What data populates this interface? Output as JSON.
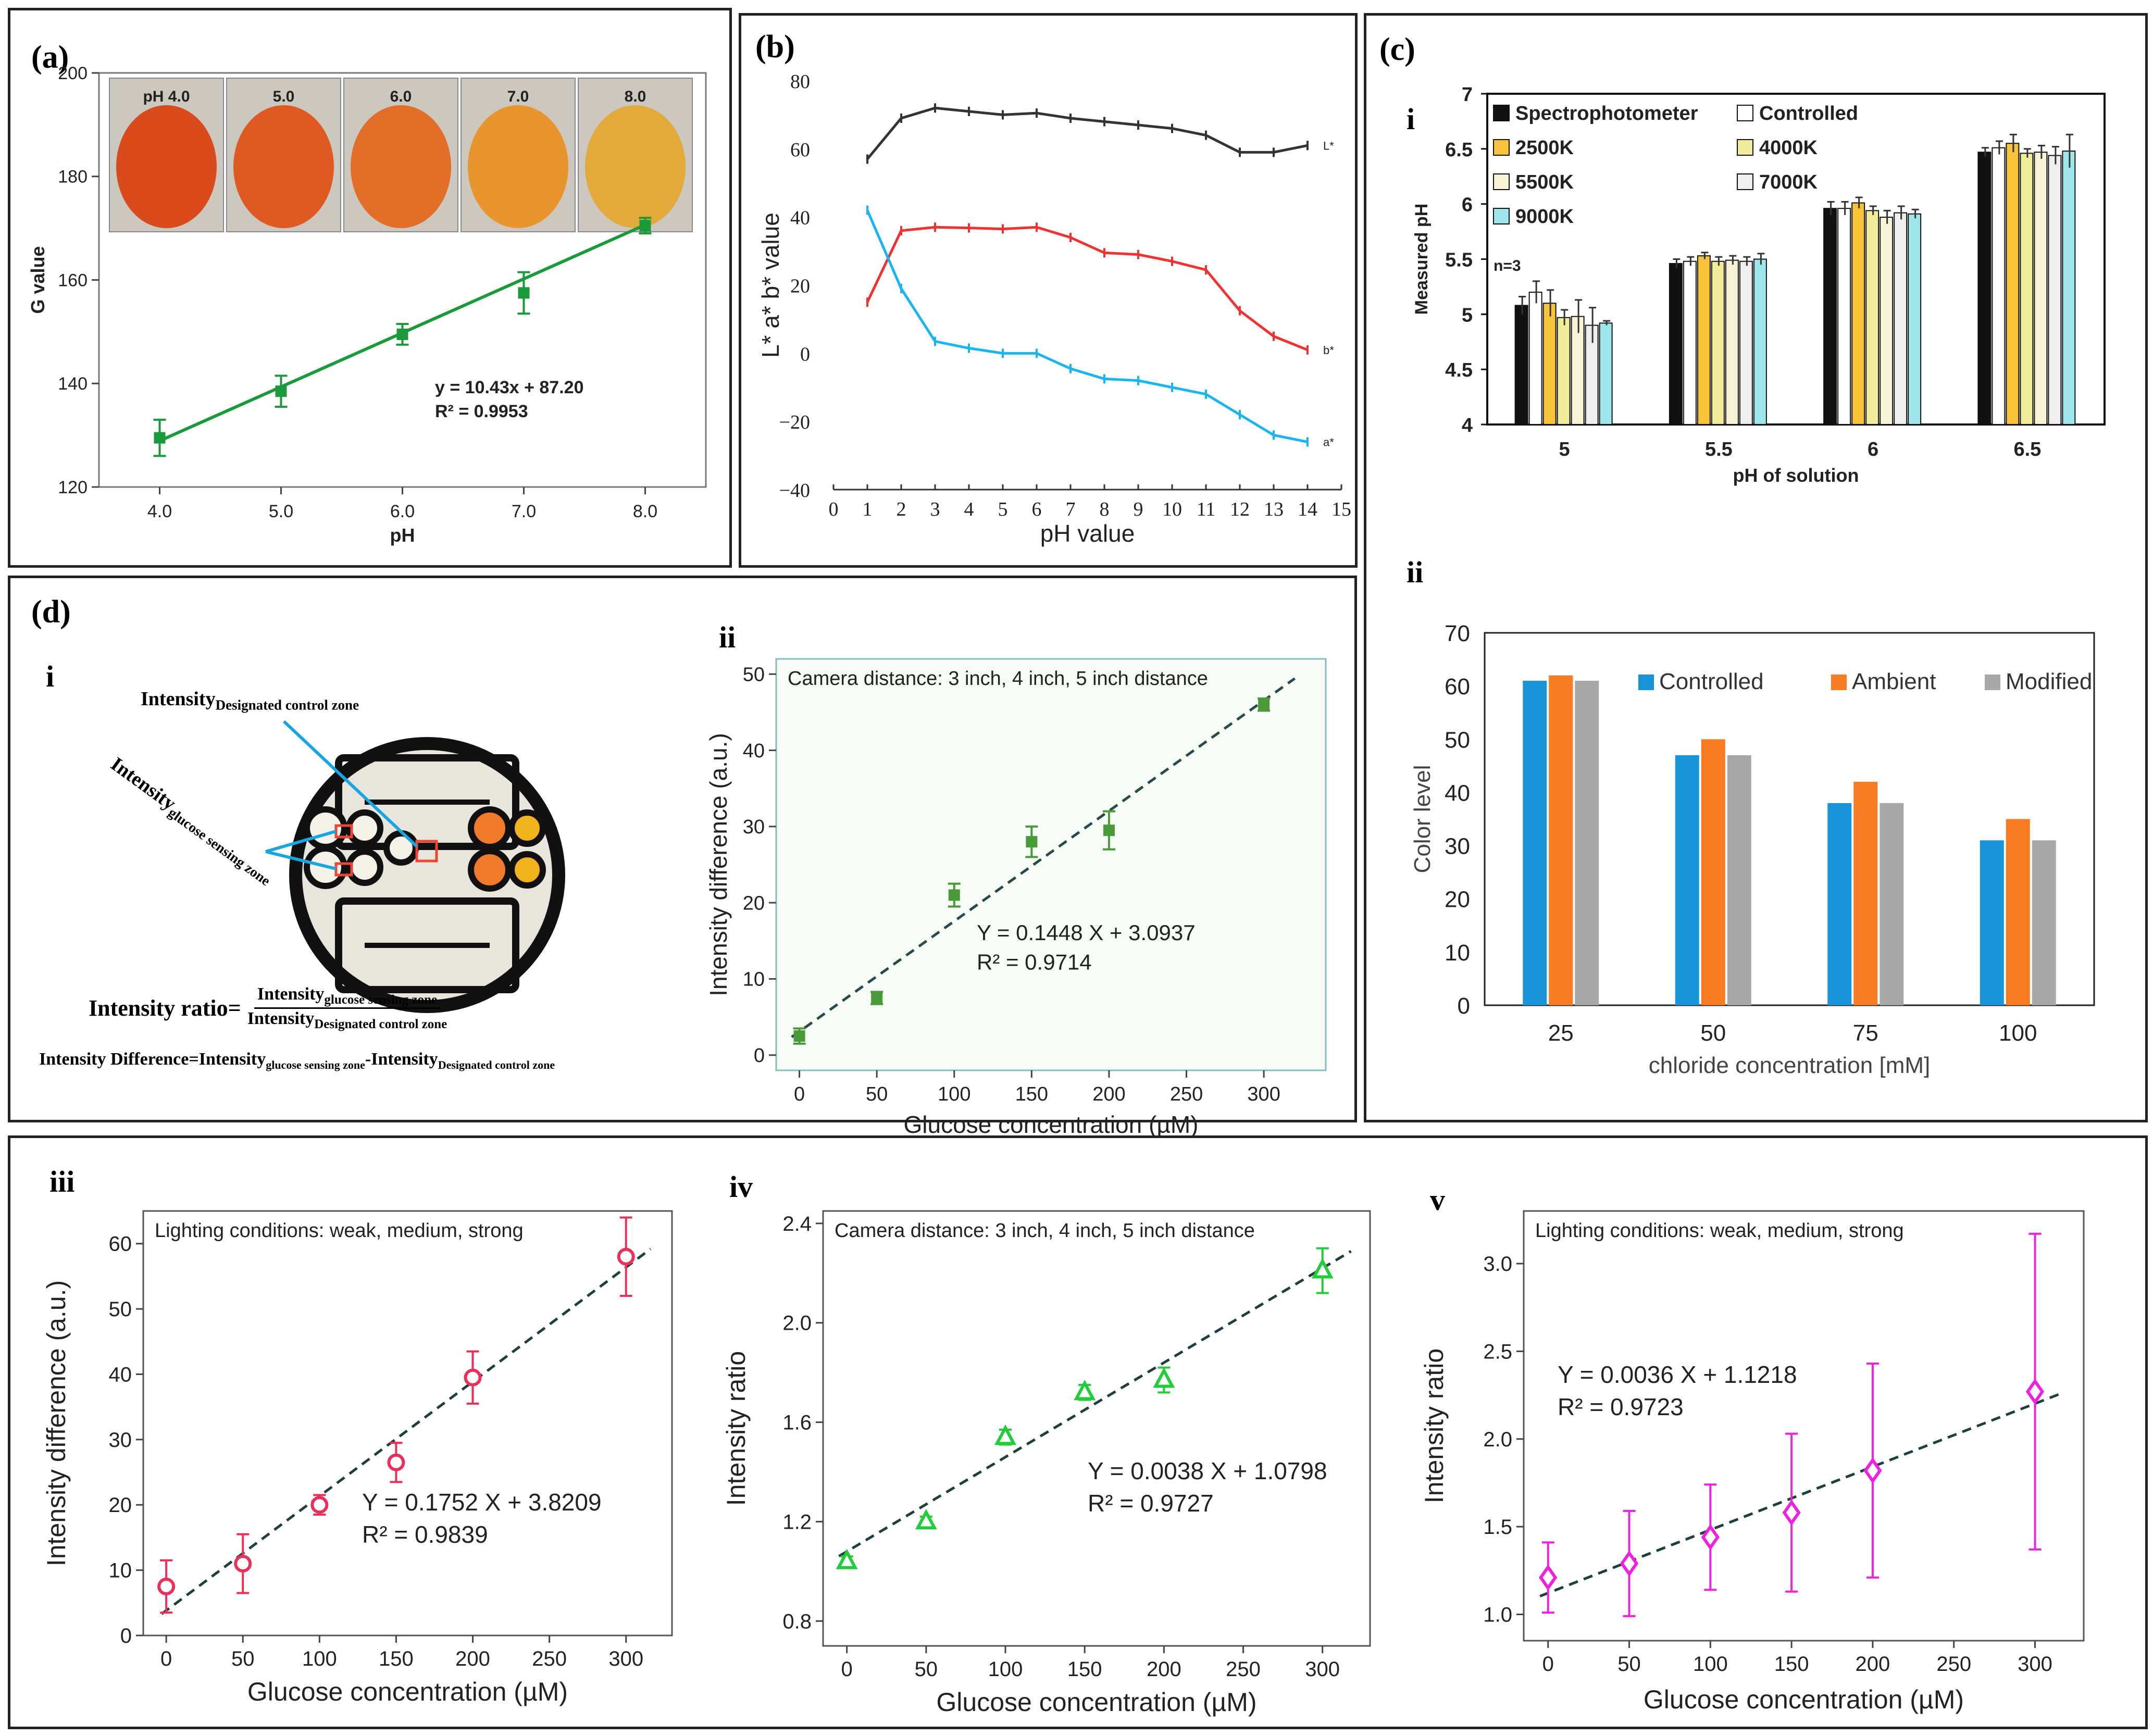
{
  "panels": {
    "a": {
      "label": "(a)"
    },
    "b": {
      "label": "(b)"
    },
    "c": {
      "label": "(c)",
      "sub_i": "i",
      "sub_ii": "ii"
    },
    "d": {
      "label": "(d)",
      "sub_i": "i",
      "sub_ii": "ii",
      "sub_iii": "iii",
      "sub_iv": "iv",
      "sub_v": "v"
    }
  },
  "diagram": {
    "control_zone_label": "Intensity",
    "control_zone_sub": "Designated control zone",
    "sensing_zone_label": "Intensity",
    "sensing_zone_sub": "glucose sensing zone",
    "ratio_label": "Intensity ratio=",
    "ratio_num": "Intensity",
    "ratio_num_sub": "glucose sensing zone",
    "ratio_den": "Intensity",
    "ratio_den_sub": "Designated control zone",
    "diff_label": "Intensity Difference=Intensity",
    "diff_sub1": "glucose sensing zone",
    "diff_mid": "-Intensity",
    "diff_sub2": "Designated control zone"
  },
  "photo_strip": {
    "labels": [
      "pH 4.0",
      "5.0",
      "6.0",
      "7.0",
      "8.0"
    ],
    "colors": [
      "#d94a1c",
      "#de5a22",
      "#e26e28",
      "#e8952e",
      "#e2aa3a"
    ]
  },
  "chart_data": [
    {
      "id": "a",
      "type": "scatter",
      "title": "",
      "xlabel": "pH",
      "ylabel": "G value",
      "x": [
        4,
        5,
        6,
        7,
        8
      ],
      "y": [
        129.5,
        138.5,
        149.5,
        157.5,
        170.5
      ],
      "err": [
        3.5,
        3,
        2,
        4,
        1.5
      ],
      "xlim": [
        3.5,
        8.5
      ],
      "ylim": [
        120,
        200
      ],
      "xticks": [
        "4.0",
        "5.0",
        "6.0",
        "7.0",
        "8.0"
      ],
      "yticks": [
        "120",
        "140",
        "160",
        "180",
        "200"
      ],
      "fit": {
        "slope": 10.43,
        "intercept": 87.2
      },
      "annotation1": "y = 10.43x + 87.20",
      "annotation2": "R² = 0.9953",
      "color": "#1a9a3a"
    },
    {
      "id": "b",
      "type": "line",
      "title": "",
      "xlabel": "pH value",
      "ylabel": "L* a* b* value",
      "x": [
        1,
        2,
        3,
        4,
        5,
        6,
        7,
        8,
        9,
        10,
        11,
        12,
        13,
        14
      ],
      "series": [
        {
          "name": "L*",
          "color": "#333333",
          "values": [
            57,
            69,
            72,
            71,
            70,
            70.5,
            69,
            68,
            67,
            66,
            64,
            59,
            59,
            61
          ]
        },
        {
          "name": "b*",
          "color": "#ee3333",
          "values": [
            15,
            36,
            37,
            36.8,
            36.5,
            37,
            34,
            29.5,
            29,
            27,
            24.5,
            12.5,
            5,
            1
          ]
        },
        {
          "name": "a*",
          "color": "#1ab5f0",
          "values": [
            42,
            19,
            3.5,
            1.5,
            0,
            0,
            -4.5,
            -7.5,
            -8,
            -10,
            -12,
            -18,
            -24,
            -26
          ]
        }
      ],
      "xlim": [
        0,
        15
      ],
      "ylim": [
        -40,
        80
      ],
      "xticks": [
        "0",
        "1",
        "2",
        "3",
        "4",
        "5",
        "6",
        "7",
        "8",
        "9",
        "10",
        "11",
        "12",
        "13",
        "14",
        "15"
      ],
      "yticks": [
        "−40",
        "−20",
        "0",
        "20",
        "40",
        "60",
        "80"
      ],
      "end_labels": [
        "L*",
        "b*",
        "a*"
      ]
    },
    {
      "id": "c-i",
      "type": "bar",
      "title": "",
      "xlabel": "pH of solution",
      "ylabel": "Measured pH",
      "categories": [
        "5",
        "5.5",
        "6",
        "6.5"
      ],
      "ylim": [
        4,
        7
      ],
      "yticks": [
        "4",
        "4.5",
        "5",
        "5.5",
        "6",
        "6.5",
        "7"
      ],
      "note": "n=3",
      "series": [
        {
          "name": "Spectrophotometer",
          "color": "#111111",
          "values": [
            5.08,
            5.46,
            5.96,
            6.47
          ],
          "err": [
            0.08,
            0.04,
            0.06,
            0.04
          ]
        },
        {
          "name": "Controlled",
          "color": "#ffffff",
          "values": [
            5.2,
            5.48,
            5.96,
            6.51
          ],
          "err": [
            0.1,
            0.04,
            0.06,
            0.06
          ]
        },
        {
          "name": "2500K",
          "color": "#f7c33a",
          "values": [
            5.1,
            5.53,
            6.01,
            6.55
          ],
          "err": [
            0.12,
            0.03,
            0.05,
            0.08
          ]
        },
        {
          "name": "4000K",
          "color": "#f0ec9a",
          "values": [
            4.97,
            5.48,
            5.94,
            6.46
          ],
          "err": [
            0.07,
            0.04,
            0.04,
            0.04
          ]
        },
        {
          "name": "5500K",
          "color": "#f7f4d6",
          "values": [
            4.98,
            5.49,
            5.88,
            6.47
          ],
          "err": [
            0.15,
            0.04,
            0.06,
            0.06
          ]
        },
        {
          "name": "7000K",
          "color": "#eeeeee",
          "values": [
            4.9,
            5.48,
            5.92,
            6.44
          ],
          "err": [
            0.16,
            0.04,
            0.06,
            0.08
          ]
        },
        {
          "name": "9000K",
          "color": "#9ee5ec",
          "values": [
            4.92,
            5.5,
            5.91,
            6.48
          ],
          "err": [
            0.02,
            0.05,
            0.04,
            0.15
          ]
        }
      ]
    },
    {
      "id": "c-ii",
      "type": "bar",
      "title": "",
      "xlabel": "chloride concentration [mM]",
      "ylabel": "Color level",
      "categories": [
        "25",
        "50",
        "75",
        "100"
      ],
      "ylim": [
        0,
        70
      ],
      "yticks": [
        "0",
        "10",
        "20",
        "30",
        "40",
        "50",
        "60",
        "70"
      ],
      "series": [
        {
          "name": "Controlled",
          "color": "#1a94d8",
          "values": [
            61,
            47,
            38,
            31
          ]
        },
        {
          "name": "Ambient",
          "color": "#f97b22",
          "values": [
            62,
            50,
            42,
            35
          ]
        },
        {
          "name": "Modified",
          "color": "#a8a8a8",
          "values": [
            61,
            47,
            38,
            31
          ]
        }
      ]
    },
    {
      "id": "d-ii",
      "type": "scatter",
      "title": "Camera distance: 3 inch, 4 inch, 5 inch distance",
      "xlabel": "Glucose concentration (µM)",
      "ylabel": "Intensity difference  (a.u.)",
      "x": [
        0,
        50,
        100,
        150,
        200,
        300
      ],
      "y": [
        2.5,
        7.5,
        21,
        28,
        29.5,
        46
      ],
      "err": [
        1,
        0.8,
        1.5,
        2,
        2.5,
        0.8
      ],
      "xlim": [
        -15,
        340
      ],
      "ylim": [
        -2,
        52
      ],
      "xticks": [
        "0",
        "50",
        "100",
        "150",
        "200",
        "250",
        "300"
      ],
      "yticks": [
        "0",
        "10",
        "20",
        "30",
        "40",
        "50"
      ],
      "fit": {
        "slope": 0.1448,
        "intercept": 3.0937
      },
      "annotation1": "Y = 0.1448 X + 3.0937",
      "annotation2": "R² = 0.9714",
      "color": "#4a9a3a"
    },
    {
      "id": "d-iii",
      "type": "scatter",
      "title": "Lighting conditions: weak, medium, strong",
      "xlabel": "Glucose concentration (µM)",
      "ylabel": "Intensity difference  (a.u.)",
      "x": [
        0,
        50,
        100,
        150,
        200,
        300
      ],
      "y": [
        7.5,
        11,
        20,
        26.5,
        39.5,
        58
      ],
      "err": [
        4,
        4.5,
        1.5,
        3,
        4,
        6
      ],
      "xlim": [
        -15,
        330
      ],
      "ylim": [
        0,
        65
      ],
      "xticks": [
        "0",
        "50",
        "100",
        "150",
        "200",
        "250",
        "300"
      ],
      "yticks": [
        "0",
        "10",
        "20",
        "30",
        "40",
        "50",
        "60"
      ],
      "fit": {
        "slope": 0.1752,
        "intercept": 3.8209
      },
      "annotation1": "Y = 0.1752 X + 3.8209",
      "annotation2": "R² = 0.9839",
      "color": "#e8305a"
    },
    {
      "id": "d-iv",
      "type": "scatter",
      "title": "Camera distance: 3 inch, 4 inch, 5 inch distance",
      "xlabel": "Glucose concentration (µM)",
      "ylabel": "Intensity ratio",
      "x": [
        0,
        50,
        100,
        150,
        200,
        300
      ],
      "y": [
        1.04,
        1.2,
        1.54,
        1.72,
        1.77,
        2.21
      ],
      "err": [
        0.02,
        0.02,
        0.03,
        0.03,
        0.05,
        0.09
      ],
      "xlim": [
        -15,
        330
      ],
      "ylim": [
        0.7,
        2.45
      ],
      "xticks": [
        "0",
        "50",
        "100",
        "150",
        "200",
        "250",
        "300"
      ],
      "yticks": [
        "0.8",
        "1.2",
        "1.6",
        "2.0",
        "2.4"
      ],
      "fit": {
        "slope": 0.0038,
        "intercept": 1.0798
      },
      "annotation1": "Y = 0.0038 X + 1.0798",
      "annotation2": "R² = 0.9727",
      "color": "#22cc3a"
    },
    {
      "id": "d-v",
      "type": "scatter",
      "title": "Lighting conditions: weak, medium, strong",
      "xlabel": "Glucose concentration (µM)",
      "ylabel": "Intensity ratio",
      "x": [
        0,
        50,
        100,
        150,
        200,
        300
      ],
      "y": [
        1.21,
        1.29,
        1.44,
        1.58,
        1.82,
        2.27
      ],
      "err": [
        0.2,
        0.3,
        0.3,
        0.45,
        0.61,
        0.9
      ],
      "xlim": [
        -15,
        330
      ],
      "ylim": [
        0.85,
        3.3
      ],
      "xticks": [
        "0",
        "50",
        "100",
        "150",
        "200",
        "250",
        "300"
      ],
      "yticks": [
        "1.0",
        "1.5",
        "2.0",
        "2.5",
        "3.0"
      ],
      "fit": {
        "slope": 0.0036,
        "intercept": 1.1218
      },
      "annotation1": "Y = 0.0036 X + 1.1218",
      "annotation2": "R² = 0.9723",
      "color": "#ee22dd"
    }
  ]
}
